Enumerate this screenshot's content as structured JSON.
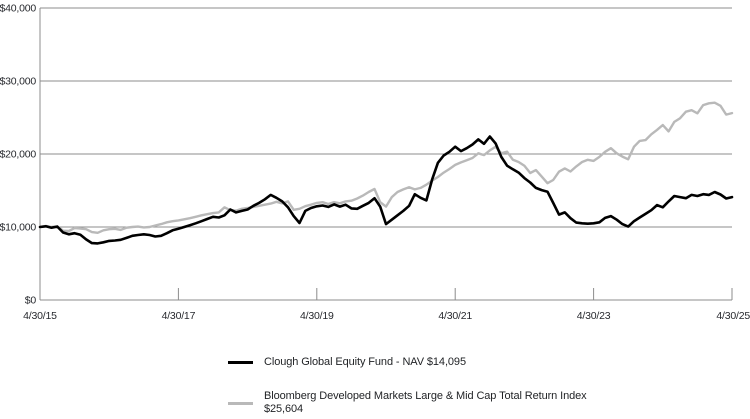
{
  "colors": {
    "fund_line": "#000000",
    "index_line": "#b9b9b9",
    "grid": "#8c8c8c",
    "axis_text": "#27292e",
    "background": "#ffffff"
  },
  "legend": [
    {
      "line1": "Clough Global Equity Fund - NAV $14,095",
      "line2": "",
      "color": "#000000"
    },
    {
      "line1": "Bloomberg Developed Markets Large & Mid Cap Total Return Index",
      "line2": "$25,604",
      "color": "#b9b9b9"
    }
  ],
  "chart_data": {
    "type": "line",
    "title": "",
    "xlabel": "",
    "ylabel": "",
    "ylim": [
      0,
      40000
    ],
    "grid": "horizontal",
    "legend_position": "bottom",
    "x_count": 121,
    "x_unit": "months since 4/30/15, monthly samples through 4/30/25",
    "y_ticks": [
      {
        "value": 0,
        "label": "$0"
      },
      {
        "value": 10000,
        "label": "$10,000"
      },
      {
        "value": 20000,
        "label": "$20,000"
      },
      {
        "value": 30000,
        "label": "$30,000"
      },
      {
        "value": 40000,
        "label": "$40,000"
      }
    ],
    "x_ticks": [
      {
        "index": 0,
        "label": "4/30/15"
      },
      {
        "index": 24,
        "label": "4/30/17"
      },
      {
        "index": 48,
        "label": "4/30/19"
      },
      {
        "index": 72,
        "label": "4/30/21"
      },
      {
        "index": 96,
        "label": "4/30/23"
      },
      {
        "index": 120,
        "label": "4/30/25"
      }
    ],
    "series": [
      {
        "name": "Clough Global Equity Fund - NAV $14,095",
        "final_value": 14095,
        "color": "#000000",
        "width": 2.6,
        "values": [
          10000,
          10100,
          9900,
          10050,
          9250,
          9000,
          9150,
          8950,
          8300,
          7800,
          7750,
          7900,
          8100,
          8150,
          8250,
          8500,
          8800,
          8900,
          9000,
          8900,
          8700,
          8800,
          9150,
          9550,
          9750,
          10000,
          10250,
          10500,
          10800,
          11100,
          11400,
          11300,
          11600,
          12400,
          12000,
          12200,
          12400,
          12900,
          13300,
          13800,
          14400,
          14000,
          13500,
          12700,
          11500,
          10550,
          12200,
          12600,
          12830,
          12950,
          12750,
          13100,
          12800,
          13050,
          12550,
          12500,
          12900,
          13300,
          13950,
          12800,
          10400,
          11000,
          11600,
          12200,
          12900,
          14500,
          14000,
          13650,
          16500,
          18800,
          19800,
          20300,
          21000,
          20400,
          20800,
          21300,
          22000,
          21400,
          22400,
          21450,
          19600,
          18400,
          17900,
          17450,
          16700,
          16100,
          15350,
          15050,
          14840,
          13300,
          11700,
          12000,
          11200,
          10600,
          10500,
          10450,
          10500,
          10650,
          11250,
          11500,
          11000,
          10400,
          10050,
          10800,
          11300,
          11800,
          12300,
          13000,
          12700,
          13500,
          14250,
          14100,
          13950,
          14400,
          14250,
          14500,
          14400,
          14800,
          14450,
          13900,
          14095
        ]
      },
      {
        "name": "Bloomberg Developed Markets Large & Mid Cap Total Return Index $25,604",
        "final_value": 25604,
        "color": "#b9b9b9",
        "width": 2.4,
        "values": [
          10000,
          10150,
          10000,
          10100,
          9500,
          9450,
          9850,
          9800,
          9700,
          9300,
          9200,
          9550,
          9700,
          9750,
          9600,
          9900,
          10000,
          10050,
          9950,
          10000,
          10200,
          10400,
          10650,
          10800,
          10900,
          11050,
          11200,
          11400,
          11600,
          11750,
          11900,
          12000,
          12700,
          12300,
          12250,
          12500,
          12600,
          12750,
          12900,
          13050,
          13200,
          13450,
          13250,
          13500,
          12350,
          12500,
          12850,
          13050,
          13300,
          13400,
          13150,
          13400,
          13250,
          13500,
          13600,
          13900,
          14300,
          14800,
          15200,
          13400,
          12800,
          14100,
          14800,
          15150,
          15450,
          15150,
          15350,
          15800,
          16350,
          16850,
          17450,
          17950,
          18500,
          18850,
          19150,
          19450,
          20100,
          19850,
          20500,
          21000,
          20100,
          20320,
          19200,
          18900,
          18400,
          17400,
          17800,
          16900,
          16000,
          16440,
          17580,
          18030,
          17600,
          18300,
          18900,
          19200,
          19050,
          19600,
          20300,
          20800,
          20100,
          19650,
          19270,
          21000,
          21800,
          21900,
          22700,
          23300,
          23970,
          23100,
          24400,
          24900,
          25800,
          26000,
          25570,
          26700,
          26940,
          27030,
          26600,
          25400,
          25604
        ]
      }
    ]
  }
}
